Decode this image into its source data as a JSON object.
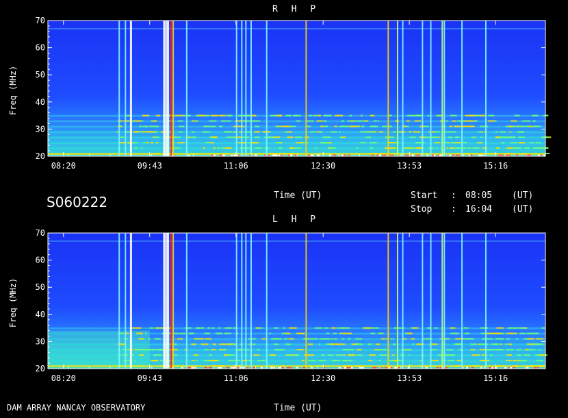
{
  "panels": [
    {
      "id": "rhp",
      "title": "R H P",
      "ylabel": "Freq (MHz)",
      "xlabel": "Time (UT)"
    },
    {
      "id": "lhp",
      "title": "L H P",
      "ylabel": "Freq (MHz)",
      "xlabel": "Time (UT)"
    }
  ],
  "session_id": "S060222",
  "start": {
    "label": "Start",
    "sep": ":",
    "value": "08:05",
    "unit": "(UT)"
  },
  "stop": {
    "label": "Stop",
    "sep": ":",
    "value": "16:04",
    "unit": "(UT)"
  },
  "footer": "DAM ARRAY  NANCAY OBSERVATORY",
  "colors": {
    "background": "#1d40ff",
    "low_band": "#2fe0d8",
    "burst": "#ffe000",
    "rfi_white": "#ffffff",
    "rfi_red": "#ff3b3b",
    "axis": "#ffffff"
  },
  "chart_data": [
    {
      "type": "heatmap",
      "title": "R H P",
      "xlabel": "Time (UT)",
      "ylabel": "Freq (MHz)",
      "xlim": [
        "08:05",
        "16:04"
      ],
      "ylim": [
        20,
        70
      ],
      "x_ticks": [
        "08:20",
        "09:43",
        "11:06",
        "12:30",
        "13:53",
        "15:16"
      ],
      "y_ticks": [
        20,
        30,
        40,
        50,
        60,
        70
      ],
      "grid": false,
      "vertical_interference_utc": [
        "09:13",
        "09:19",
        "09:24",
        "09:56",
        "09:59",
        "10:03",
        "10:05",
        "10:18",
        "11:06",
        "11:11",
        "11:15",
        "11:20",
        "11:35",
        "12:13",
        "13:32",
        "13:41",
        "13:46",
        "14:05",
        "14:13",
        "14:24",
        "14:26",
        "14:43",
        "15:06"
      ],
      "horizontal_bands_mhz": [
        21,
        23,
        25,
        27,
        29,
        31,
        33,
        35,
        67
      ]
    },
    {
      "type": "heatmap",
      "title": "L H P",
      "xlabel": "Time (UT)",
      "ylabel": "Freq (MHz)",
      "xlim": [
        "08:05",
        "16:04"
      ],
      "ylim": [
        20,
        70
      ],
      "x_ticks": [
        "08:20",
        "09:43",
        "11:06",
        "12:30",
        "13:53",
        "15:16"
      ],
      "y_ticks": [
        20,
        30,
        40,
        50,
        60,
        70
      ],
      "grid": false,
      "vertical_interference_utc": [
        "09:13",
        "09:19",
        "09:24",
        "09:56",
        "09:59",
        "10:03",
        "10:05",
        "10:18",
        "11:06",
        "11:11",
        "11:15",
        "11:20",
        "11:35",
        "12:13",
        "13:32",
        "13:41",
        "13:46",
        "14:05",
        "14:13",
        "14:24",
        "14:26",
        "14:43",
        "15:06"
      ],
      "horizontal_bands_mhz": [
        21,
        23,
        25,
        27,
        29,
        31,
        33,
        35,
        67
      ]
    }
  ]
}
